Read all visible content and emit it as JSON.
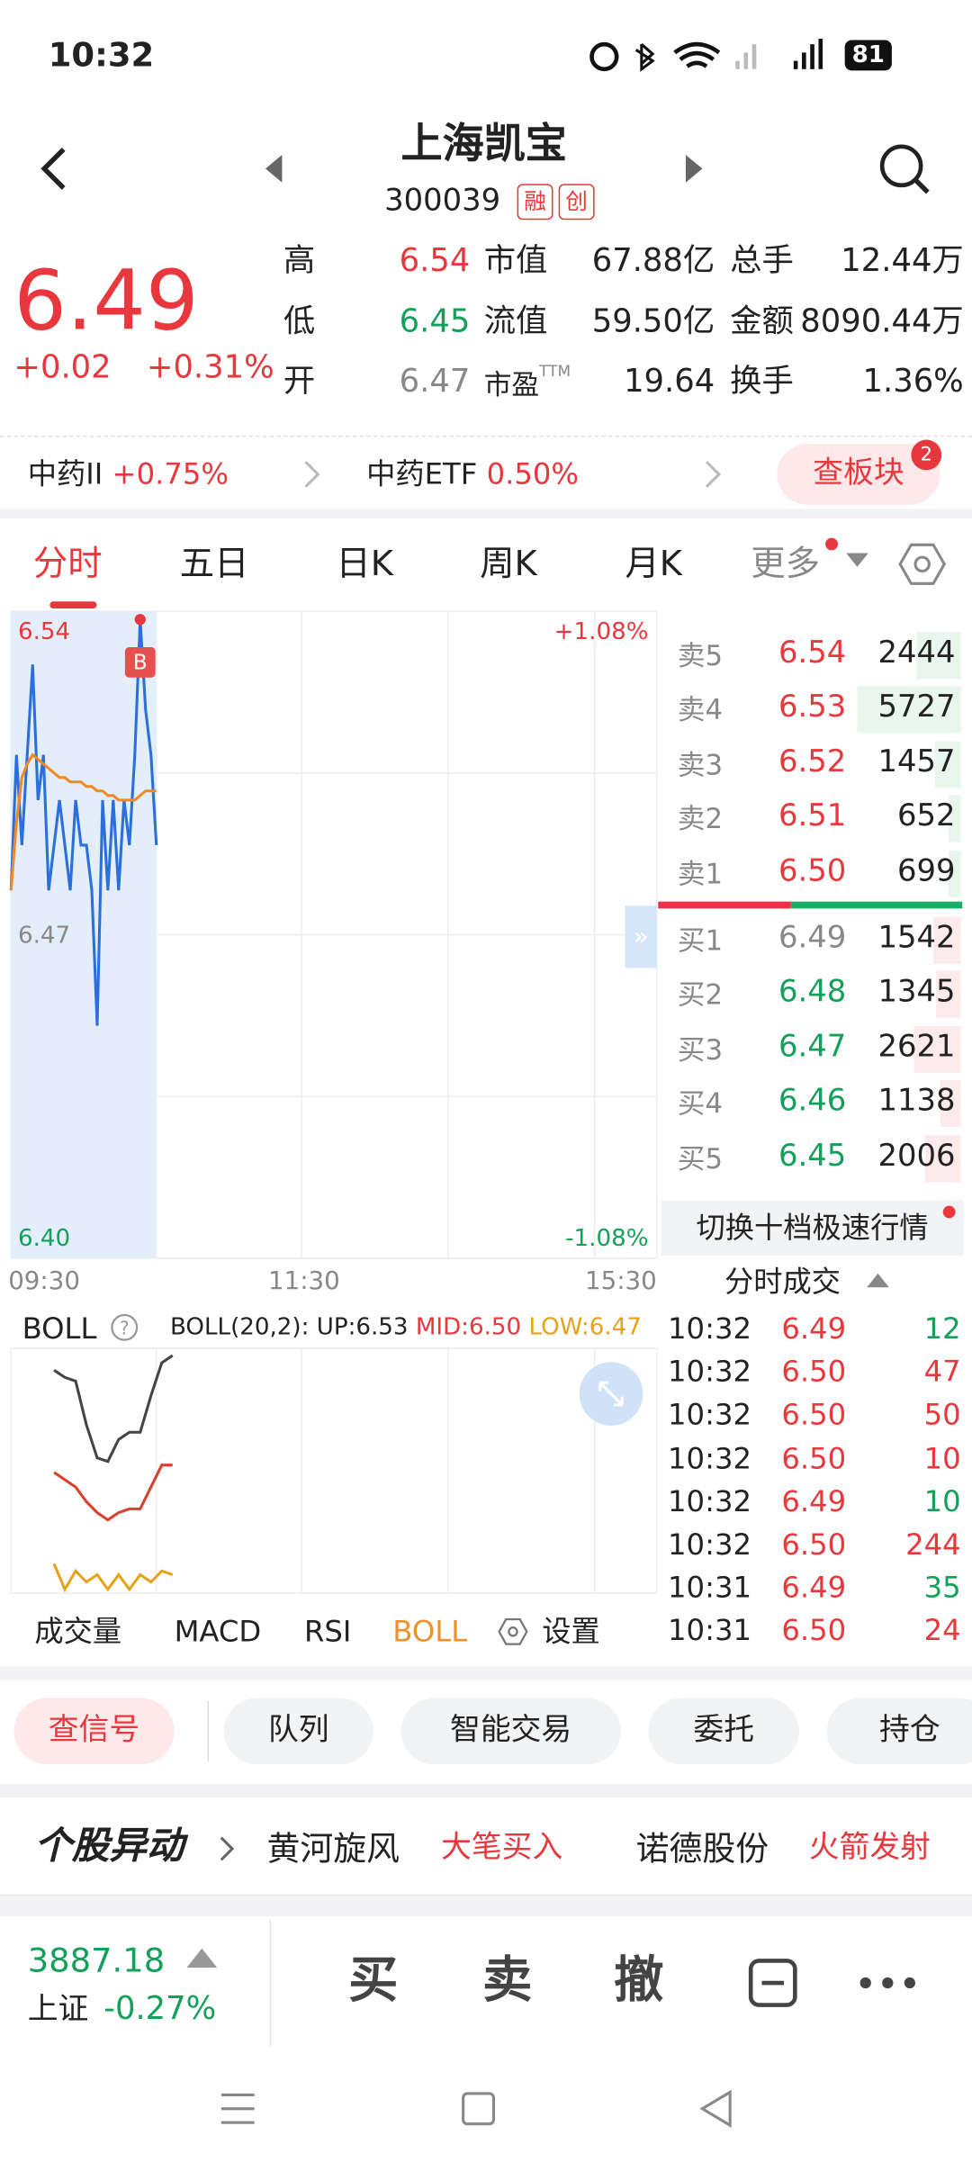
{
  "status_bar": {
    "time": "10:32",
    "battery": "81"
  },
  "header": {
    "name": "上海凯宝",
    "code": "300039",
    "tags": [
      "融",
      "创"
    ]
  },
  "quote": {
    "price": "6.49",
    "change": "+0.02",
    "change_pct": "+0.31%"
  },
  "stats": {
    "rows": [
      [
        "高",
        "6.54",
        "市值",
        "67.88亿",
        "总手",
        "12.44万"
      ],
      [
        "低",
        "6.45",
        "流值",
        "59.50亿",
        "金额",
        "8090.44万"
      ],
      [
        "开",
        "6.47",
        "市盈",
        "19.64",
        "换手",
        "1.36%"
      ]
    ],
    "ttm": "TTM"
  },
  "sectors": {
    "items": [
      {
        "name": "中药II",
        "change": "+0.75%"
      },
      {
        "name": "中药ETF",
        "change": "0.50%"
      }
    ],
    "button": "查板块",
    "badge": "2"
  },
  "tabs": [
    "分时",
    "五日",
    "日K",
    "周K",
    "月K",
    "更多"
  ],
  "chart_data": {
    "type": "line",
    "y_labels": [
      "6.54",
      "6.47",
      "6.40"
    ],
    "pct_labels": [
      "+1.08%",
      "-1.08%"
    ],
    "x_labels": [
      "09:30",
      "11:30",
      "15:30"
    ],
    "xlim": [
      0,
      240
    ],
    "ylim": [
      6.4,
      6.54
    ],
    "marker": "B",
    "x": [
      0,
      2,
      4,
      6,
      8,
      10,
      12,
      14,
      16,
      18,
      20,
      22,
      24,
      26,
      28,
      30,
      32,
      34,
      36,
      38,
      40,
      42,
      44,
      46,
      48,
      50,
      52,
      54
    ],
    "series": [
      {
        "name": "price",
        "color": "#2a6fdb",
        "values": [
          6.48,
          6.51,
          6.49,
          6.51,
          6.53,
          6.5,
          6.51,
          6.48,
          6.49,
          6.5,
          6.49,
          6.48,
          6.5,
          6.49,
          6.49,
          6.48,
          6.45,
          6.5,
          6.48,
          6.5,
          6.48,
          6.5,
          6.49,
          6.51,
          6.54,
          6.52,
          6.51,
          6.49
        ]
      },
      {
        "name": "avg",
        "color": "#f08a24",
        "values": [
          6.48,
          6.495,
          6.505,
          6.508,
          6.51,
          6.509,
          6.508,
          6.507,
          6.506,
          6.505,
          6.505,
          6.504,
          6.504,
          6.504,
          6.503,
          6.503,
          6.502,
          6.502,
          6.501,
          6.501,
          6.5,
          6.5,
          6.5,
          6.5,
          6.501,
          6.502,
          6.502,
          6.502
        ]
      }
    ]
  },
  "order_book": {
    "asks": [
      {
        "label": "卖5",
        "price": "6.54",
        "volume": 2444
      },
      {
        "label": "卖4",
        "price": "6.53",
        "volume": 5727
      },
      {
        "label": "卖3",
        "price": "6.52",
        "volume": 1457
      },
      {
        "label": "卖2",
        "price": "6.51",
        "volume": 652
      },
      {
        "label": "卖1",
        "price": "6.50",
        "volume": 699
      }
    ],
    "bids": [
      {
        "label": "买1",
        "price": "6.49",
        "volume": 1542
      },
      {
        "label": "买2",
        "price": "6.48",
        "volume": 1345
      },
      {
        "label": "买3",
        "price": "6.47",
        "volume": 2621
      },
      {
        "label": "买4",
        "price": "6.46",
        "volume": 1138
      },
      {
        "label": "买5",
        "price": "6.45",
        "volume": 2006
      }
    ],
    "switch": "切换十档极速行情"
  },
  "trades": {
    "title": "分时成交",
    "rows": [
      {
        "time": "10:32",
        "price": "6.49",
        "volume": "12",
        "color": "#13a05a"
      },
      {
        "time": "10:32",
        "price": "6.50",
        "volume": "47",
        "color": "#e8383d"
      },
      {
        "time": "10:32",
        "price": "6.50",
        "volume": "50",
        "color": "#e8383d"
      },
      {
        "time": "10:32",
        "price": "6.50",
        "volume": "10",
        "color": "#e8383d"
      },
      {
        "time": "10:32",
        "price": "6.49",
        "volume": "10",
        "color": "#13a05a"
      },
      {
        "time": "10:32",
        "price": "6.50",
        "volume": "244",
        "color": "#e8383d"
      },
      {
        "time": "10:31",
        "price": "6.49",
        "volume": "35",
        "color": "#13a05a"
      },
      {
        "time": "10:31",
        "price": "6.50",
        "volume": "24",
        "color": "#e8383d"
      }
    ]
  },
  "indicator": {
    "name": "BOLL",
    "params": "BOLL(20,2):",
    "up": "UP:6.53",
    "mid": "MID:6.50",
    "low": "LOW:6.47",
    "ylim": [
      6.465,
      6.532
    ],
    "x": [
      16,
      20,
      24,
      28,
      32,
      36,
      40,
      44,
      48,
      52,
      56,
      60
    ],
    "series": [
      {
        "name": "UP",
        "color": "#444",
        "values": [
          6.526,
          6.524,
          6.523,
          6.511,
          6.502,
          6.501,
          6.507,
          6.509,
          6.509,
          6.519,
          6.528,
          6.53
        ]
      },
      {
        "name": "MID",
        "color": "#d8402f",
        "values": [
          6.498,
          6.496,
          6.494,
          6.49,
          6.487,
          6.485,
          6.487,
          6.488,
          6.488,
          6.494,
          6.5,
          6.5
        ]
      },
      {
        "name": "LOW",
        "color": "#e5a21a",
        "values": [
          6.473,
          6.466,
          6.471,
          6.468,
          6.47,
          6.466,
          6.47,
          6.466,
          6.47,
          6.468,
          6.471,
          6.47
        ]
      }
    ]
  },
  "indicator_tabs": [
    "成交量",
    "MACD",
    "RSI",
    "BOLL",
    "设置"
  ],
  "actions": [
    "查信号",
    "队列",
    "智能交易",
    "委托",
    "持仓"
  ],
  "news": {
    "title": "个股异动",
    "items": [
      {
        "name": "黄河旋风",
        "tag": "大笔买入"
      },
      {
        "name": "诺德股份",
        "tag": "火箭发射"
      }
    ]
  },
  "index": {
    "value": "3887.18",
    "name": "上证",
    "change": "-0.27%"
  },
  "trade_buttons": [
    "买",
    "卖",
    "撤"
  ]
}
